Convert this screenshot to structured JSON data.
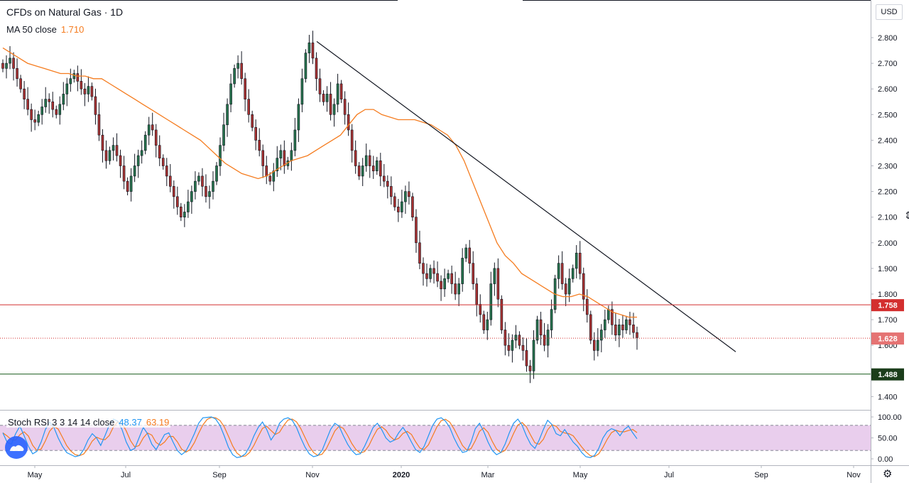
{
  "header": {
    "title": "CFDs on Natural Gas · 1D",
    "ma_label": "MA 50 close",
    "ma_value": "1.710",
    "currency": "USD"
  },
  "oscillator": {
    "label": "Stoch RSI 3 3 14 14 close",
    "k_value": "48.37",
    "d_value": "63.19",
    "ticks": [
      "100.00",
      "50.00",
      "0.00"
    ],
    "band_upper": 80,
    "band_lower": 20,
    "band_color": "#e1bee7",
    "k_color": "#2196f3",
    "d_color": "#f57c1f",
    "k_series": [
      62,
      40,
      35,
      60,
      78,
      55,
      30,
      12,
      18,
      40,
      70,
      88,
      75,
      50,
      30,
      15,
      10,
      5,
      8,
      22,
      45,
      60,
      50,
      32,
      55,
      80,
      95,
      90,
      70,
      40,
      20,
      25,
      50,
      75,
      60,
      35,
      22,
      40,
      58,
      62,
      40,
      20,
      10,
      18,
      38,
      60,
      85,
      98,
      99,
      100,
      95,
      80,
      55,
      28,
      10,
      3,
      5,
      12,
      30,
      55,
      75,
      88,
      70,
      45,
      60,
      85,
      95,
      98,
      92,
      75,
      50,
      28,
      12,
      5,
      8,
      20,
      45,
      70,
      85,
      78,
      55,
      35,
      20,
      10,
      12,
      30,
      52,
      75,
      85,
      70,
      50,
      40,
      45,
      62,
      75,
      60,
      40,
      22,
      15,
      30,
      55,
      80,
      95,
      98,
      90,
      75,
      50,
      30,
      15,
      18,
      40,
      72,
      85,
      65,
      40,
      20,
      10,
      15,
      35,
      62,
      85,
      95,
      80,
      55,
      35,
      25,
      45,
      70,
      92,
      82,
      60,
      55,
      70,
      55,
      40,
      30,
      15,
      5,
      3,
      8,
      25,
      50,
      65,
      72,
      68,
      55,
      70,
      78,
      62,
      48
    ]
  },
  "chart_data": {
    "type": "candlestick",
    "title": "CFDs on Natural Gas · 1D",
    "ylabel": "USD",
    "ylim": [
      1.38,
      2.83
    ],
    "y_ticks": [
      "2.800",
      "2.700",
      "2.600",
      "2.500",
      "2.400",
      "2.300",
      "2.200",
      "2.100",
      "2.000",
      "1.900",
      "1.800",
      "1.700",
      "1.600",
      "1.400"
    ],
    "x_ticks": [
      "May",
      "Jul",
      "Sep",
      "Nov",
      "2020",
      "Mar",
      "May",
      "Jul",
      "Sep",
      "Nov"
    ],
    "up_color": "#26734d",
    "down_color": "#a83232",
    "ma_color": "#f57c1f",
    "close_series": [
      2.68,
      2.7,
      2.72,
      2.68,
      2.64,
      2.6,
      2.56,
      2.52,
      2.48,
      2.47,
      2.5,
      2.53,
      2.56,
      2.55,
      2.52,
      2.5,
      2.54,
      2.58,
      2.62,
      2.64,
      2.66,
      2.63,
      2.6,
      2.58,
      2.61,
      2.57,
      2.5,
      2.42,
      2.36,
      2.32,
      2.36,
      2.38,
      2.34,
      2.3,
      2.24,
      2.2,
      2.26,
      2.3,
      2.34,
      2.36,
      2.42,
      2.46,
      2.44,
      2.38,
      2.33,
      2.3,
      2.26,
      2.22,
      2.18,
      2.14,
      2.1,
      2.12,
      2.16,
      2.2,
      2.24,
      2.26,
      2.22,
      2.18,
      2.2,
      2.24,
      2.3,
      2.38,
      2.46,
      2.54,
      2.62,
      2.68,
      2.7,
      2.64,
      2.56,
      2.5,
      2.45,
      2.4,
      2.36,
      2.3,
      2.26,
      2.24,
      2.28,
      2.33,
      2.36,
      2.3,
      2.32,
      2.36,
      2.44,
      2.54,
      2.64,
      2.74,
      2.78,
      2.72,
      2.64,
      2.58,
      2.55,
      2.58,
      2.5,
      2.54,
      2.62,
      2.56,
      2.5,
      2.44,
      2.36,
      2.3,
      2.26,
      2.3,
      2.34,
      2.3,
      2.28,
      2.32,
      2.26,
      2.24,
      2.22,
      2.18,
      2.14,
      2.12,
      2.16,
      2.2,
      2.18,
      2.1,
      2.0,
      1.92,
      1.88,
      1.86,
      1.9,
      1.88,
      1.85,
      1.82,
      1.86,
      1.88,
      1.84,
      1.8,
      1.84,
      1.94,
      1.98,
      1.92,
      1.84,
      1.76,
      1.72,
      1.66,
      1.7,
      1.84,
      1.9,
      1.78,
      1.66,
      1.6,
      1.58,
      1.62,
      1.64,
      1.6,
      1.58,
      1.52,
      1.5,
      1.62,
      1.7,
      1.64,
      1.6,
      1.66,
      1.74,
      1.86,
      1.92,
      1.84,
      1.8,
      1.86,
      1.9,
      1.96,
      1.88,
      1.78,
      1.72,
      1.62,
      1.58,
      1.62,
      1.66,
      1.7,
      1.74,
      1.68,
      1.64,
      1.68,
      1.66,
      1.7,
      1.68,
      1.65,
      1.63
    ],
    "ma_series": [
      2.76,
      2.74,
      2.72,
      2.7,
      2.69,
      2.68,
      2.67,
      2.66,
      2.66,
      2.65,
      2.65,
      2.64,
      2.64,
      2.62,
      2.6,
      2.58,
      2.56,
      2.54,
      2.52,
      2.5,
      2.48,
      2.46,
      2.44,
      2.42,
      2.4,
      2.37,
      2.34,
      2.31,
      2.29,
      2.27,
      2.26,
      2.25,
      2.26,
      2.28,
      2.3,
      2.32,
      2.33,
      2.34,
      2.36,
      2.38,
      2.4,
      2.42,
      2.46,
      2.5,
      2.52,
      2.52,
      2.5,
      2.49,
      2.48,
      2.48,
      2.48,
      2.47,
      2.46,
      2.44,
      2.42,
      2.38,
      2.32,
      2.24,
      2.16,
      2.08,
      2.0,
      1.95,
      1.92,
      1.88,
      1.86,
      1.84,
      1.82,
      1.8,
      1.79,
      1.79,
      1.8,
      1.79,
      1.77,
      1.75,
      1.73,
      1.72,
      1.71,
      1.71
    ],
    "trendline": {
      "from": [
        446,
        2.785
      ],
      "to": [
        1036,
        1.575
      ]
    },
    "levels": [
      {
        "value": 1.758,
        "label": "1.758",
        "color": "#d32f2f",
        "style": "solid",
        "label_bg": "#d32f2f"
      },
      {
        "value": 1.628,
        "label": "1.628",
        "color": "#d32f2f",
        "style": "dotted",
        "label_bg": "#e57373"
      },
      {
        "value": 1.488,
        "label": "1.488",
        "color": "#1b5e20",
        "style": "solid",
        "label_bg": "#1b3d1b"
      }
    ],
    "grid": false,
    "legend": "top-left"
  }
}
